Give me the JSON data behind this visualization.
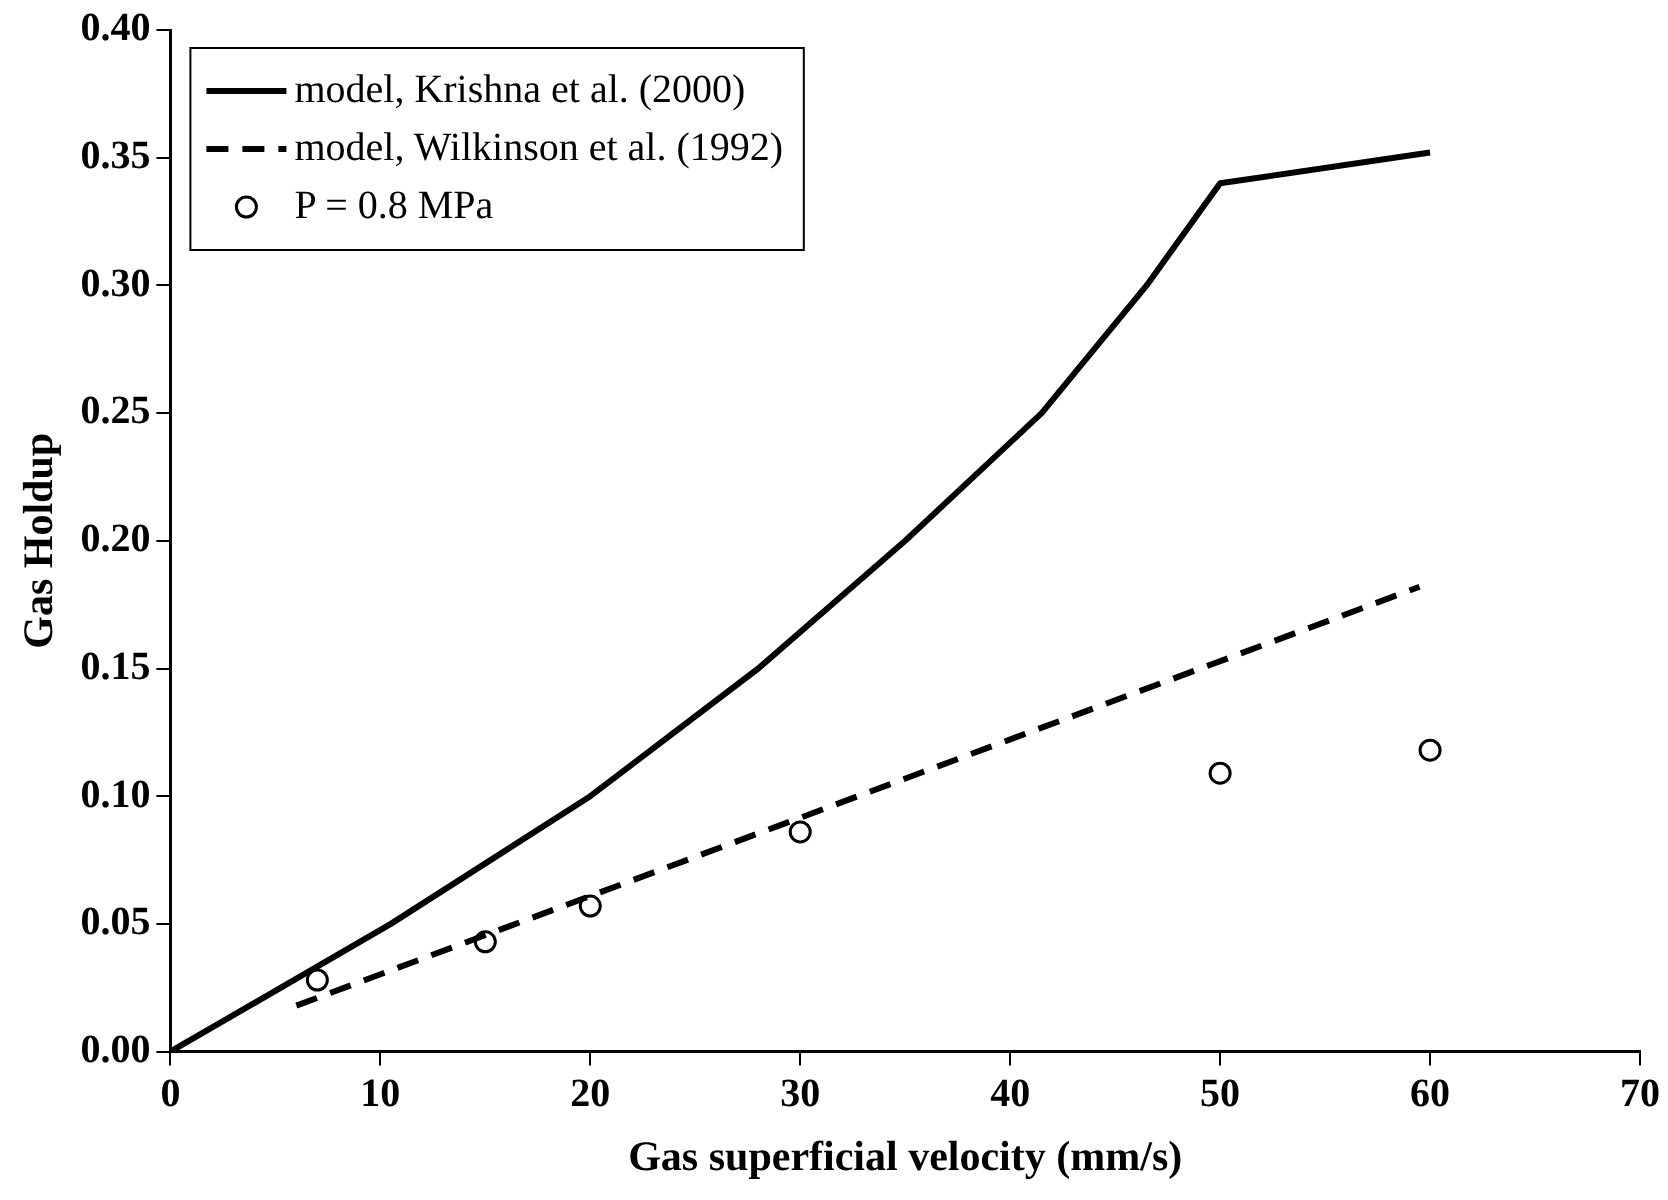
{
  "chart_data": {
    "type": "line",
    "xlabel": "Gas superficial velocity (mm/s)",
    "ylabel": "Gas Holdup",
    "xlim": [
      0,
      70
    ],
    "xticks": [
      0,
      10,
      20,
      30,
      40,
      50,
      60,
      70
    ],
    "ylim": [
      0,
      0.4
    ],
    "yticks": [
      {
        "value": 0,
        "label": "0.00"
      },
      {
        "value": 0.05,
        "label": "0.05"
      },
      {
        "value": 0.1,
        "label": "0.10"
      },
      {
        "value": 0.15,
        "label": "0.15"
      },
      {
        "value": 0.2,
        "label": "0.20"
      },
      {
        "value": 0.25,
        "label": "0.25"
      },
      {
        "value": 0.3,
        "label": "0.30"
      },
      {
        "value": 0.35,
        "label": "0.35"
      },
      {
        "value": 0.4,
        "label": "0.40"
      }
    ],
    "grid": false,
    "legend": "top left",
    "series": [
      {
        "name": "model, Krishna et al. (2000)",
        "line_style": "solid",
        "marker": "none",
        "color": "#000000",
        "x": [
          0,
          10.5,
          20,
          28,
          35,
          41.5,
          46.5,
          50,
          60
        ],
        "values": [
          0,
          0.05,
          0.1,
          0.15,
          0.2,
          0.25,
          0.3,
          0.34,
          0.352
        ]
      },
      {
        "name": "model, Wilkinson et al. (1992)",
        "line_style": "dashed",
        "marker": "none",
        "color": "#000000",
        "x": [
          6,
          59.5
        ],
        "values": [
          0.018,
          0.182
        ]
      },
      {
        "name": "P = 0.8 MPa",
        "type": "scatter",
        "marker": "circle",
        "color": "#000000",
        "x": [
          7,
          15,
          20,
          30,
          50,
          60
        ],
        "values": [
          0.028,
          0.043,
          0.057,
          0.086,
          0.109,
          0.118
        ]
      }
    ]
  }
}
